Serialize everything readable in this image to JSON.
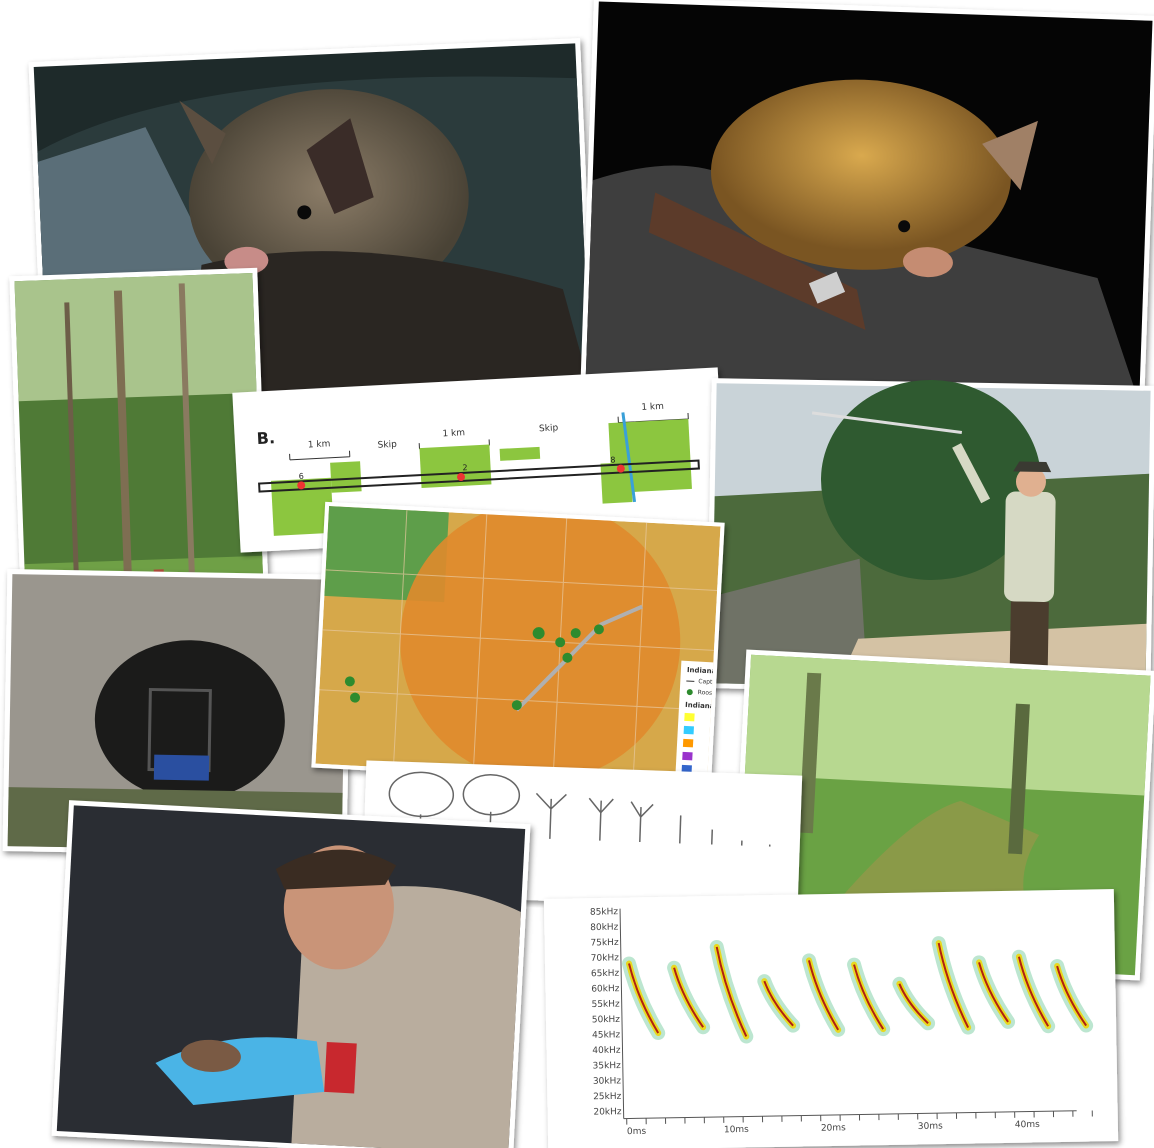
{
  "strip_map": {
    "label": "B.",
    "segments": [
      "1 km",
      "Skip",
      "1 km",
      "Skip",
      "1 km"
    ],
    "sites": [
      "6",
      "2",
      "8"
    ]
  },
  "habitat_map": {
    "legend_title": "Indiana bat locations",
    "legend_items": [
      "Capture site",
      "Roost"
    ],
    "buffers_title": "Indiana bat buffers"
  },
  "spectrogram": {
    "y_labels": [
      "85kHz",
      "80kHz",
      "75kHz",
      "70kHz",
      "65kHz",
      "60kHz",
      "55kHz",
      "50kHz",
      "45kHz",
      "40kHz",
      "35kHz",
      "30kHz",
      "25kHz",
      "20kHz"
    ],
    "x_labels": [
      "0ms",
      "10ms",
      "20ms",
      "30ms",
      "40ms"
    ]
  }
}
